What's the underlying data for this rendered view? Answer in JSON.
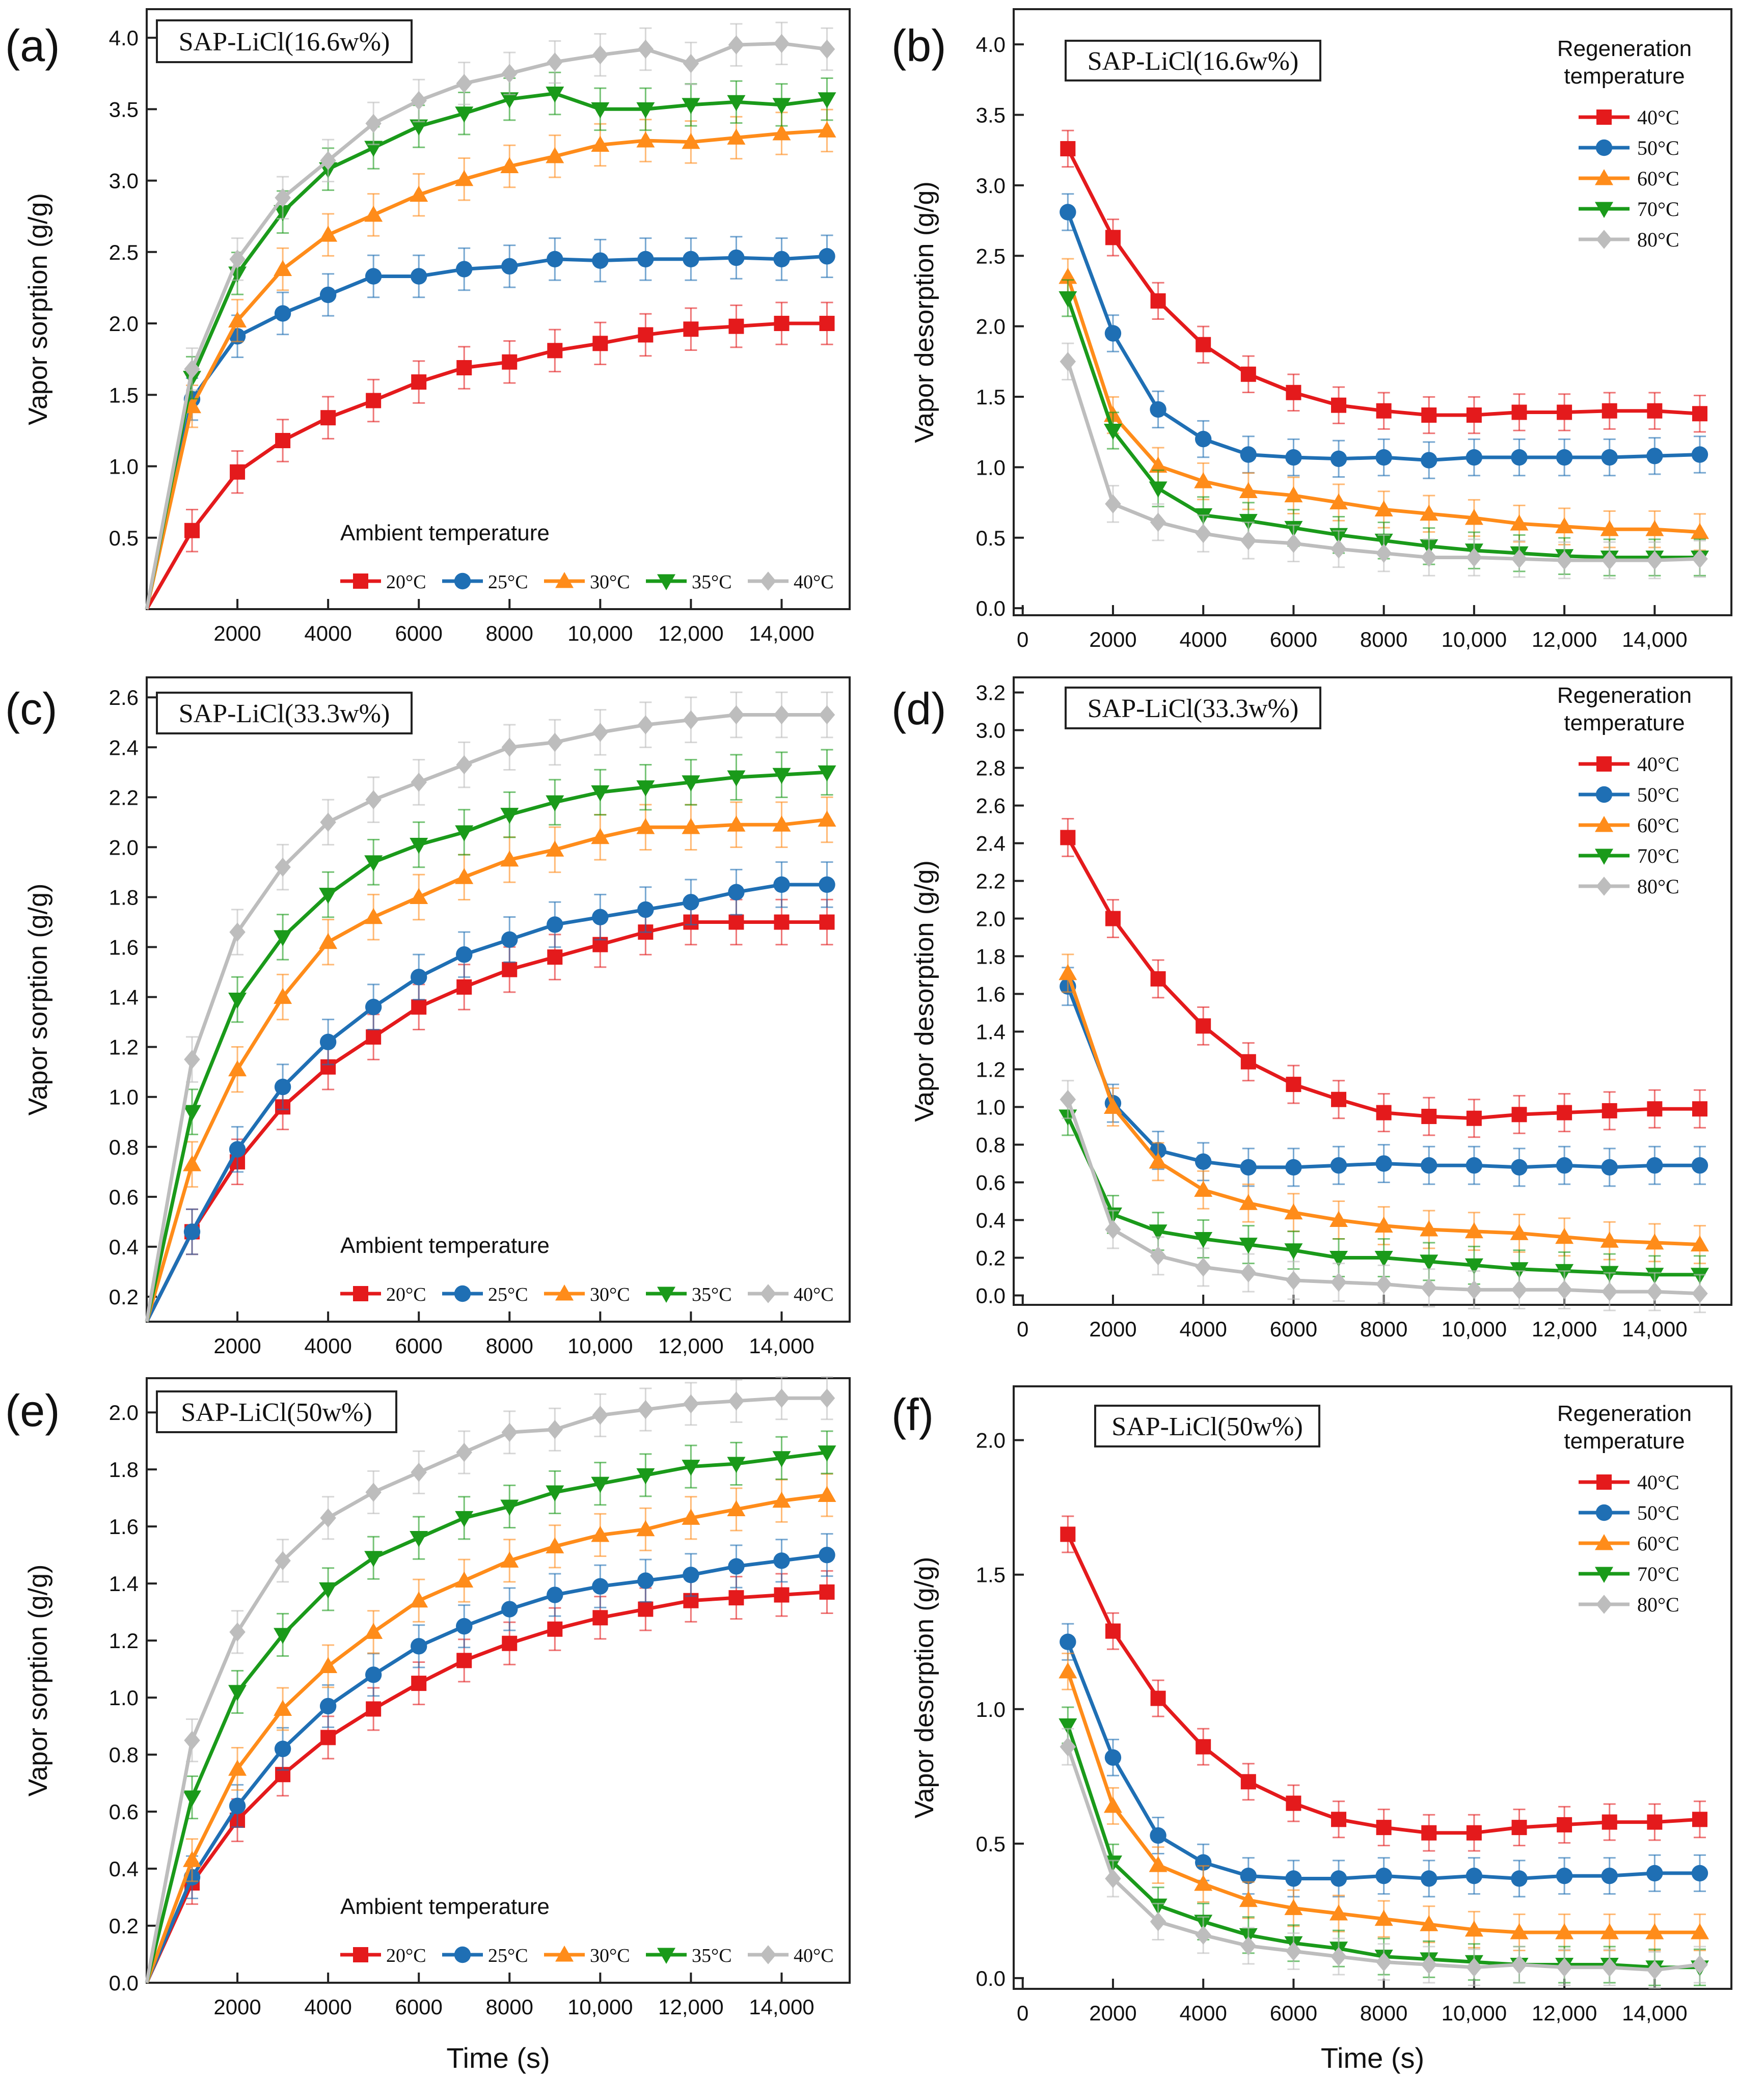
{
  "figure": {
    "xlabel": "Time (s)",
    "ylabel_sorption": "Vapor sorption (g/g)",
    "ylabel_desorption": "Vapor desorption (g/g)",
    "sorption_legend_title": "Ambient temperature",
    "desorption_legend_title_line1": "Regeneration",
    "desorption_legend_title_line2": "temperature",
    "sorption_legend": [
      "20°C",
      "25°C",
      "30°C",
      "35°C",
      "40°C"
    ],
    "desorption_legend": [
      "40°C",
      "50°C",
      "60°C",
      "70°C",
      "80°C"
    ],
    "series_colors": [
      "#e41a1c",
      "#1f6fb4",
      "#ff8c1a",
      "#1a9a1a",
      "#bdbdbd"
    ],
    "x_ticks": [
      2000,
      4000,
      6000,
      8000,
      10000,
      12000,
      14000
    ],
    "x_tick_labels_sorption": [
      "2000",
      "4000",
      "6000",
      "8000",
      "10,000",
      "12,000",
      "14,000"
    ],
    "x_ticks_desorption": [
      0,
      2000,
      4000,
      6000,
      8000,
      10000,
      12000,
      14000
    ],
    "x_tick_labels_desorption": [
      "0",
      "2000",
      "4000",
      "6000",
      "8000",
      "10,000",
      "12,000",
      "14,000"
    ]
  },
  "chart_data": [
    {
      "panel": "(a)",
      "type": "line",
      "title": "SAP-LiCl(16.6w%)",
      "x": [
        0,
        1000,
        2000,
        3000,
        4000,
        5000,
        6000,
        7000,
        8000,
        9000,
        10000,
        11000,
        12000,
        13000,
        14000,
        15000
      ],
      "xlim": [
        0,
        15500
      ],
      "ylim": [
        0.0,
        4.2
      ],
      "y_ticks": [
        0.5,
        1.0,
        1.5,
        2.0,
        2.5,
        3.0,
        3.5,
        4.0
      ],
      "y_tick_labels": [
        "0.5",
        "1.0",
        "1.5",
        "2.0",
        "2.5",
        "3.0",
        "3.5",
        "4.0"
      ],
      "series": [
        {
          "name": "20°C",
          "values": [
            0.0,
            0.55,
            0.96,
            1.18,
            1.34,
            1.46,
            1.59,
            1.69,
            1.73,
            1.81,
            1.86,
            1.92,
            1.96,
            1.98,
            2.0,
            2.0
          ]
        },
        {
          "name": "25°C",
          "values": [
            0.0,
            1.47,
            1.91,
            2.07,
            2.2,
            2.33,
            2.33,
            2.38,
            2.4,
            2.45,
            2.44,
            2.45,
            2.45,
            2.46,
            2.45,
            2.47
          ]
        },
        {
          "name": "30°C",
          "values": [
            0.0,
            1.42,
            2.02,
            2.38,
            2.62,
            2.76,
            2.9,
            3.01,
            3.1,
            3.17,
            3.25,
            3.28,
            3.27,
            3.3,
            3.33,
            3.35
          ]
        },
        {
          "name": "35°C",
          "values": [
            0.0,
            1.62,
            2.35,
            2.78,
            3.08,
            3.23,
            3.38,
            3.47,
            3.57,
            3.61,
            3.5,
            3.5,
            3.53,
            3.55,
            3.53,
            3.57
          ]
        },
        {
          "name": "40°C",
          "values": [
            0.0,
            1.68,
            2.45,
            2.88,
            3.14,
            3.4,
            3.56,
            3.68,
            3.75,
            3.83,
            3.88,
            3.92,
            3.82,
            3.95,
            3.96,
            3.92
          ]
        }
      ]
    },
    {
      "panel": "(b)",
      "type": "line",
      "title": "SAP-LiCl(16.6w%)",
      "x": [
        1000,
        2000,
        3000,
        4000,
        5000,
        6000,
        7000,
        8000,
        9000,
        10000,
        11000,
        12000,
        13000,
        14000,
        15000
      ],
      "xlim": [
        -200,
        15700
      ],
      "ylim": [
        -0.05,
        4.25
      ],
      "y_ticks": [
        0.0,
        0.5,
        1.0,
        1.5,
        2.0,
        2.5,
        3.0,
        3.5,
        4.0
      ],
      "y_tick_labels": [
        "0.0",
        "0.5",
        "1.0",
        "1.5",
        "2.0",
        "2.5",
        "3.0",
        "3.5",
        "4.0"
      ],
      "series": [
        {
          "name": "40°C",
          "values": [
            3.26,
            2.63,
            2.18,
            1.87,
            1.66,
            1.53,
            1.44,
            1.4,
            1.37,
            1.37,
            1.39,
            1.39,
            1.4,
            1.4,
            1.38
          ]
        },
        {
          "name": "50°C",
          "values": [
            2.81,
            1.95,
            1.41,
            1.2,
            1.09,
            1.07,
            1.06,
            1.07,
            1.05,
            1.07,
            1.07,
            1.07,
            1.07,
            1.08,
            1.09
          ]
        },
        {
          "name": "60°C",
          "values": [
            2.35,
            1.37,
            1.01,
            0.9,
            0.83,
            0.8,
            0.75,
            0.7,
            0.67,
            0.64,
            0.6,
            0.58,
            0.56,
            0.56,
            0.54
          ]
        },
        {
          "name": "70°C",
          "values": [
            2.2,
            1.26,
            0.85,
            0.66,
            0.62,
            0.57,
            0.52,
            0.48,
            0.44,
            0.41,
            0.39,
            0.37,
            0.36,
            0.36,
            0.36
          ]
        },
        {
          "name": "80°C",
          "values": [
            1.75,
            0.74,
            0.61,
            0.53,
            0.48,
            0.46,
            0.42,
            0.39,
            0.36,
            0.36,
            0.35,
            0.34,
            0.34,
            0.34,
            0.35
          ]
        }
      ]
    },
    {
      "panel": "(c)",
      "type": "line",
      "title": "SAP-LiCl(33.3w%)",
      "x": [
        0,
        1000,
        2000,
        3000,
        4000,
        5000,
        6000,
        7000,
        8000,
        9000,
        10000,
        11000,
        12000,
        13000,
        14000,
        15000
      ],
      "xlim": [
        0,
        15500
      ],
      "ylim": [
        0.1,
        2.68
      ],
      "y_ticks": [
        0.2,
        0.4,
        0.6,
        0.8,
        1.0,
        1.2,
        1.4,
        1.6,
        1.8,
        2.0,
        2.2,
        2.4,
        2.6
      ],
      "y_tick_labels": [
        "0.2",
        "0.4",
        "0.6",
        "0.8",
        "1.0",
        "1.2",
        "1.4",
        "1.6",
        "1.8",
        "2.0",
        "2.2",
        "2.4",
        "2.6"
      ],
      "series": [
        {
          "name": "20°C",
          "values": [
            0.1,
            0.46,
            0.74,
            0.96,
            1.12,
            1.24,
            1.36,
            1.44,
            1.51,
            1.56,
            1.61,
            1.66,
            1.7,
            1.7,
            1.7,
            1.7
          ]
        },
        {
          "name": "25°C",
          "values": [
            0.1,
            0.46,
            0.79,
            1.04,
            1.22,
            1.36,
            1.48,
            1.57,
            1.63,
            1.69,
            1.72,
            1.75,
            1.78,
            1.82,
            1.85,
            1.85
          ]
        },
        {
          "name": "30°C",
          "values": [
            0.1,
            0.73,
            1.11,
            1.4,
            1.62,
            1.72,
            1.8,
            1.88,
            1.95,
            1.99,
            2.04,
            2.08,
            2.08,
            2.09,
            2.09,
            2.11
          ]
        },
        {
          "name": "35°C",
          "values": [
            0.1,
            0.94,
            1.39,
            1.64,
            1.81,
            1.94,
            2.01,
            2.06,
            2.13,
            2.18,
            2.22,
            2.24,
            2.26,
            2.28,
            2.29,
            2.3
          ]
        },
        {
          "name": "40°C",
          "values": [
            0.1,
            1.15,
            1.66,
            1.92,
            2.1,
            2.19,
            2.26,
            2.33,
            2.4,
            2.42,
            2.46,
            2.49,
            2.51,
            2.53,
            2.53,
            2.53
          ]
        }
      ]
    },
    {
      "panel": "(d)",
      "type": "line",
      "title": "SAP-LiCl(33.3w%)",
      "x": [
        1000,
        2000,
        3000,
        4000,
        5000,
        6000,
        7000,
        8000,
        9000,
        10000,
        11000,
        12000,
        13000,
        14000,
        15000
      ],
      "xlim": [
        -200,
        15700
      ],
      "ylim": [
        -0.05,
        3.28
      ],
      "y_ticks": [
        0.0,
        0.2,
        0.4,
        0.6,
        0.8,
        1.0,
        1.2,
        1.4,
        1.6,
        1.8,
        2.0,
        2.2,
        2.4,
        2.6,
        2.8,
        3.0,
        3.2
      ],
      "y_tick_labels": [
        "0.0",
        "0.2",
        "0.4",
        "0.6",
        "0.8",
        "1.0",
        "1.2",
        "1.4",
        "1.6",
        "1.8",
        "2.0",
        "2.2",
        "2.4",
        "2.6",
        "2.8",
        "3.0",
        "3.2"
      ],
      "series": [
        {
          "name": "40°C",
          "values": [
            2.43,
            2.0,
            1.68,
            1.43,
            1.24,
            1.12,
            1.04,
            0.97,
            0.95,
            0.94,
            0.96,
            0.97,
            0.98,
            0.99,
            0.99
          ]
        },
        {
          "name": "50°C",
          "values": [
            1.64,
            1.02,
            0.77,
            0.71,
            0.68,
            0.68,
            0.69,
            0.7,
            0.69,
            0.69,
            0.68,
            0.69,
            0.68,
            0.69,
            0.69
          ]
        },
        {
          "name": "60°C",
          "values": [
            1.71,
            1.0,
            0.71,
            0.56,
            0.49,
            0.44,
            0.4,
            0.37,
            0.35,
            0.34,
            0.33,
            0.31,
            0.29,
            0.28,
            0.27
          ]
        },
        {
          "name": "70°C",
          "values": [
            0.95,
            0.43,
            0.34,
            0.3,
            0.27,
            0.24,
            0.2,
            0.2,
            0.18,
            0.16,
            0.14,
            0.13,
            0.12,
            0.11,
            0.11
          ]
        },
        {
          "name": "80°C",
          "values": [
            1.04,
            0.35,
            0.21,
            0.15,
            0.12,
            0.08,
            0.07,
            0.06,
            0.04,
            0.03,
            0.03,
            0.03,
            0.02,
            0.02,
            0.01
          ]
        }
      ]
    },
    {
      "panel": "(e)",
      "type": "line",
      "title": "SAP-LiCl(50w%)",
      "x": [
        0,
        1000,
        2000,
        3000,
        4000,
        5000,
        6000,
        7000,
        8000,
        9000,
        10000,
        11000,
        12000,
        13000,
        14000,
        15000
      ],
      "xlim": [
        0,
        15500
      ],
      "ylim": [
        0.0,
        2.12
      ],
      "y_ticks": [
        0.0,
        0.2,
        0.4,
        0.6,
        0.8,
        1.0,
        1.2,
        1.4,
        1.6,
        1.8,
        2.0
      ],
      "y_tick_labels": [
        "0.0",
        "0.2",
        "0.4",
        "0.6",
        "0.8",
        "1.0",
        "1.2",
        "1.4",
        "1.6",
        "1.8",
        "2.0"
      ],
      "series": [
        {
          "name": "20°C",
          "values": [
            0.0,
            0.35,
            0.57,
            0.73,
            0.86,
            0.96,
            1.05,
            1.13,
            1.19,
            1.24,
            1.28,
            1.31,
            1.34,
            1.35,
            1.36,
            1.37
          ]
        },
        {
          "name": "25°C",
          "values": [
            0.0,
            0.37,
            0.62,
            0.82,
            0.97,
            1.08,
            1.18,
            1.25,
            1.31,
            1.36,
            1.39,
            1.41,
            1.43,
            1.46,
            1.48,
            1.5
          ]
        },
        {
          "name": "30°C",
          "values": [
            0.0,
            0.43,
            0.75,
            0.96,
            1.11,
            1.23,
            1.34,
            1.41,
            1.48,
            1.53,
            1.57,
            1.59,
            1.63,
            1.66,
            1.69,
            1.71
          ]
        },
        {
          "name": "35°C",
          "values": [
            0.0,
            0.65,
            1.02,
            1.22,
            1.38,
            1.49,
            1.56,
            1.63,
            1.67,
            1.72,
            1.75,
            1.78,
            1.81,
            1.82,
            1.84,
            1.86
          ]
        },
        {
          "name": "40°C",
          "values": [
            0.0,
            0.85,
            1.23,
            1.48,
            1.63,
            1.72,
            1.79,
            1.86,
            1.93,
            1.94,
            1.99,
            2.01,
            2.03,
            2.04,
            2.05,
            2.05
          ]
        }
      ]
    },
    {
      "panel": "(f)",
      "type": "line",
      "title": "SAP-LiCl(50w%)",
      "x": [
        1000,
        2000,
        3000,
        4000,
        5000,
        6000,
        7000,
        8000,
        9000,
        10000,
        11000,
        12000,
        13000,
        14000,
        15000
      ],
      "xlim": [
        -200,
        15700
      ],
      "ylim": [
        -0.04,
        2.2
      ],
      "y_ticks": [
        0.0,
        0.5,
        1.0,
        1.5,
        2.0
      ],
      "y_tick_labels": [
        "0.0",
        "0.5",
        "1.0",
        "1.5",
        "2.0"
      ],
      "series": [
        {
          "name": "40°C",
          "values": [
            1.65,
            1.29,
            1.04,
            0.86,
            0.73,
            0.65,
            0.59,
            0.56,
            0.54,
            0.54,
            0.56,
            0.57,
            0.58,
            0.58,
            0.59
          ]
        },
        {
          "name": "50°C",
          "values": [
            1.25,
            0.82,
            0.53,
            0.43,
            0.38,
            0.37,
            0.37,
            0.38,
            0.37,
            0.38,
            0.37,
            0.38,
            0.38,
            0.39,
            0.39
          ]
        },
        {
          "name": "60°C",
          "values": [
            1.14,
            0.64,
            0.42,
            0.35,
            0.29,
            0.26,
            0.24,
            0.22,
            0.2,
            0.18,
            0.17,
            0.17,
            0.17,
            0.17,
            0.17
          ]
        },
        {
          "name": "70°C",
          "values": [
            0.94,
            0.43,
            0.27,
            0.21,
            0.16,
            0.13,
            0.11,
            0.08,
            0.07,
            0.06,
            0.05,
            0.05,
            0.05,
            0.04,
            0.04
          ]
        },
        {
          "name": "80°C",
          "values": [
            0.86,
            0.37,
            0.21,
            0.16,
            0.12,
            0.1,
            0.08,
            0.06,
            0.05,
            0.04,
            0.05,
            0.04,
            0.04,
            0.03,
            0.05
          ]
        }
      ]
    }
  ]
}
